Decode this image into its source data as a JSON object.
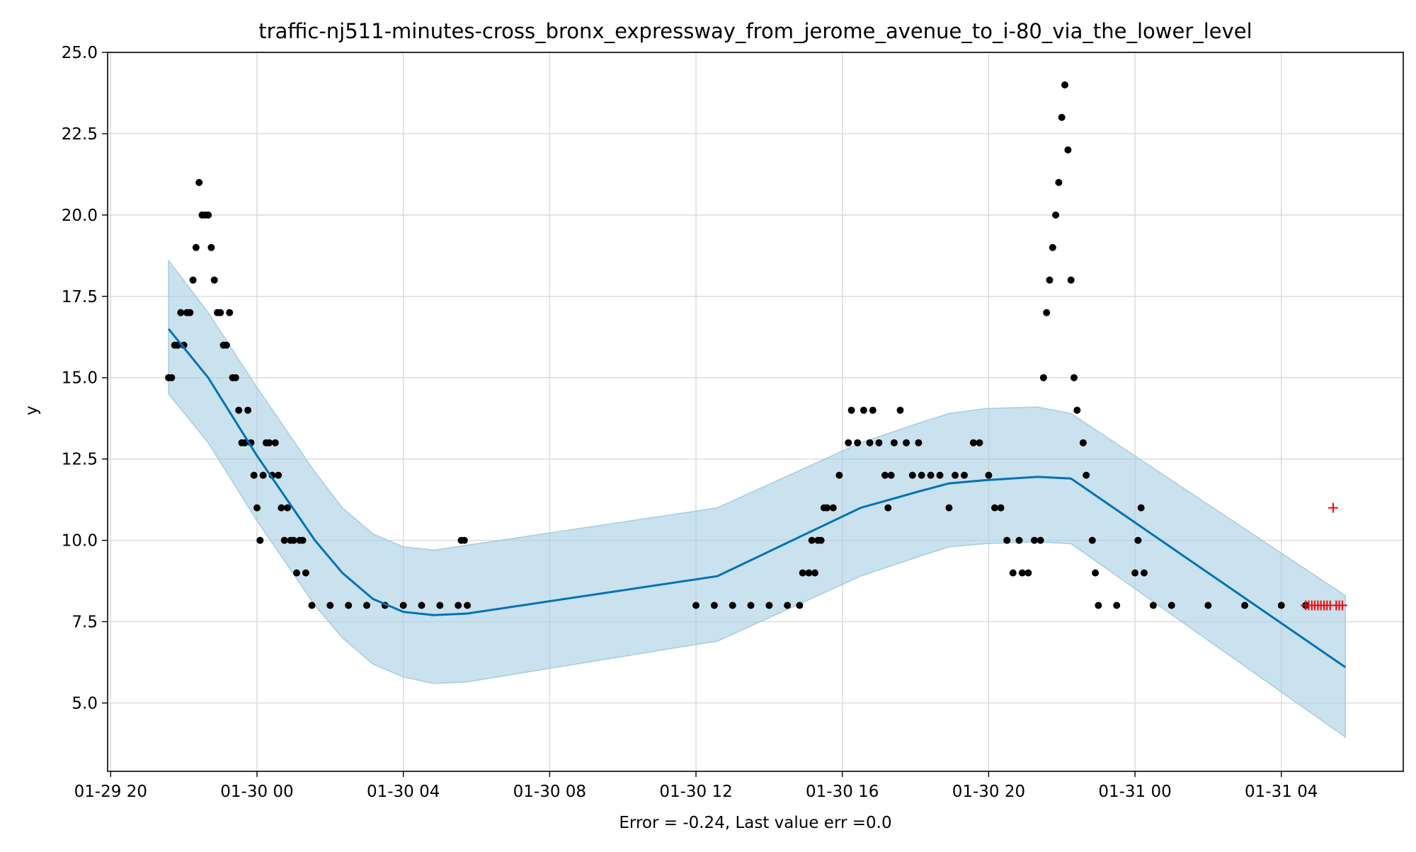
{
  "chart_data": {
    "type": "line",
    "title": "traffic-nj511-minutes-cross_bronx_expressway_from_jerome_avenue_to_i-80_via_the_lower_level",
    "xlabel": "Error = -0.24, Last value err =0.0",
    "ylabel": "y",
    "x_type": "datetime",
    "xlim": [
      "2020-01-29T19:55",
      "2020-01-31T07:20"
    ],
    "ylim": [
      2.9,
      25.0
    ],
    "grid": true,
    "x_ticks": [
      {
        "value": "2020-01-29T20:00",
        "label": "01-29 20"
      },
      {
        "value": "2020-01-30T00:00",
        "label": "01-30 00"
      },
      {
        "value": "2020-01-30T04:00",
        "label": "01-30 04"
      },
      {
        "value": "2020-01-30T08:00",
        "label": "01-30 08"
      },
      {
        "value": "2020-01-30T12:00",
        "label": "01-30 12"
      },
      {
        "value": "2020-01-30T16:00",
        "label": "01-30 16"
      },
      {
        "value": "2020-01-30T20:00",
        "label": "01-30 20"
      },
      {
        "value": "2020-01-31T00:00",
        "label": "01-31 00"
      },
      {
        "value": "2020-01-31T04:00",
        "label": "01-31 04"
      }
    ],
    "y_ticks": [
      {
        "value": 5.0,
        "label": "5.0"
      },
      {
        "value": 7.5,
        "label": "7.5"
      },
      {
        "value": 10.0,
        "label": "10.0"
      },
      {
        "value": 12.5,
        "label": "12.5"
      },
      {
        "value": 15.0,
        "label": "15.0"
      },
      {
        "value": 17.5,
        "label": "17.5"
      },
      {
        "value": 20.0,
        "label": "20.0"
      },
      {
        "value": 22.5,
        "label": "22.5"
      },
      {
        "value": 25.0,
        "label": "25.0"
      }
    ],
    "colors": {
      "forecast_line": "#0072b2",
      "uncertainty_band": "#a6cde3",
      "observed": "#000000",
      "test_points": "#ff0000",
      "grid": "#d9d9d9"
    },
    "forecast": {
      "x": [
        "2020-01-29T21:35",
        "2020-01-29T22:40",
        "2020-01-30T00:00",
        "2020-01-30T01:35",
        "2020-01-30T02:20",
        "2020-01-30T03:10",
        "2020-01-30T04:00",
        "2020-01-30T04:50",
        "2020-01-30T05:45",
        "2020-01-30T12:35",
        "2020-01-30T16:30",
        "2020-01-30T18:05",
        "2020-01-30T18:55",
        "2020-01-30T19:55",
        "2020-01-30T21:20",
        "2020-01-30T22:15",
        "2020-01-31T05:45"
      ],
      "y": [
        16.5,
        15.0,
        12.6,
        10.0,
        9.0,
        8.2,
        7.8,
        7.7,
        7.75,
        8.9,
        11.0,
        11.5,
        11.75,
        11.85,
        11.95,
        11.9,
        6.1
      ]
    },
    "uncertainty": {
      "x": [
        "2020-01-29T21:35",
        "2020-01-29T22:40",
        "2020-01-30T00:00",
        "2020-01-30T01:35",
        "2020-01-30T02:20",
        "2020-01-30T03:10",
        "2020-01-30T04:00",
        "2020-01-30T04:50",
        "2020-01-30T05:45",
        "2020-01-30T12:00",
        "2020-01-30T12:35",
        "2020-01-30T16:30",
        "2020-01-30T18:05",
        "2020-01-30T18:55",
        "2020-01-30T19:55",
        "2020-01-30T21:20",
        "2020-01-30T22:15",
        "2020-01-31T05:45"
      ],
      "upper": [
        18.6,
        17.0,
        14.7,
        12.1,
        11.0,
        10.2,
        9.8,
        9.7,
        9.85,
        10.9,
        11.0,
        13.0,
        13.6,
        13.9,
        14.05,
        14.1,
        13.9,
        8.3
      ],
      "lower": [
        14.5,
        13.0,
        10.6,
        8.0,
        7.0,
        6.2,
        5.8,
        5.6,
        5.65,
        6.8,
        6.9,
        8.9,
        9.5,
        9.8,
        9.9,
        9.95,
        9.9,
        3.95
      ]
    },
    "observed": [
      [
        "2020-01-29T21:35",
        15
      ],
      [
        "2020-01-29T21:40",
        15
      ],
      [
        "2020-01-29T21:45",
        16
      ],
      [
        "2020-01-29T21:50",
        16
      ],
      [
        "2020-01-29T21:55",
        17
      ],
      [
        "2020-01-29T22:00",
        16
      ],
      [
        "2020-01-29T22:05",
        17
      ],
      [
        "2020-01-29T22:10",
        17
      ],
      [
        "2020-01-29T22:15",
        18
      ],
      [
        "2020-01-29T22:20",
        19
      ],
      [
        "2020-01-29T22:25",
        21
      ],
      [
        "2020-01-29T22:30",
        20
      ],
      [
        "2020-01-29T22:35",
        20
      ],
      [
        "2020-01-29T22:40",
        20
      ],
      [
        "2020-01-29T22:45",
        19
      ],
      [
        "2020-01-29T22:50",
        18
      ],
      [
        "2020-01-29T22:55",
        17
      ],
      [
        "2020-01-29T23:00",
        17
      ],
      [
        "2020-01-29T23:05",
        16
      ],
      [
        "2020-01-29T23:10",
        16
      ],
      [
        "2020-01-29T23:15",
        17
      ],
      [
        "2020-01-29T23:20",
        15
      ],
      [
        "2020-01-29T23:25",
        15
      ],
      [
        "2020-01-29T23:30",
        14
      ],
      [
        "2020-01-29T23:35",
        13
      ],
      [
        "2020-01-29T23:40",
        13
      ],
      [
        "2020-01-29T23:45",
        14
      ],
      [
        "2020-01-29T23:50",
        13
      ],
      [
        "2020-01-29T23:55",
        12
      ],
      [
        "2020-01-30T00:00",
        11
      ],
      [
        "2020-01-30T00:05",
        10
      ],
      [
        "2020-01-30T00:10",
        12
      ],
      [
        "2020-01-30T00:15",
        13
      ],
      [
        "2020-01-30T00:20",
        13
      ],
      [
        "2020-01-30T00:25",
        12
      ],
      [
        "2020-01-30T00:30",
        13
      ],
      [
        "2020-01-30T00:35",
        12
      ],
      [
        "2020-01-30T00:40",
        11
      ],
      [
        "2020-01-30T00:45",
        10
      ],
      [
        "2020-01-30T00:50",
        11
      ],
      [
        "2020-01-30T00:55",
        10
      ],
      [
        "2020-01-30T01:00",
        10
      ],
      [
        "2020-01-30T01:05",
        9
      ],
      [
        "2020-01-30T01:10",
        10
      ],
      [
        "2020-01-30T01:15",
        10
      ],
      [
        "2020-01-30T01:20",
        9
      ],
      [
        "2020-01-30T01:30",
        8
      ],
      [
        "2020-01-30T02:00",
        8
      ],
      [
        "2020-01-30T02:30",
        8
      ],
      [
        "2020-01-30T03:00",
        8
      ],
      [
        "2020-01-30T03:30",
        8
      ],
      [
        "2020-01-30T04:00",
        8
      ],
      [
        "2020-01-30T04:30",
        8
      ],
      [
        "2020-01-30T05:00",
        8
      ],
      [
        "2020-01-30T05:30",
        8
      ],
      [
        "2020-01-30T05:35",
        10
      ],
      [
        "2020-01-30T05:40",
        10
      ],
      [
        "2020-01-30T05:45",
        8
      ],
      [
        "2020-01-30T12:00",
        8
      ],
      [
        "2020-01-30T12:30",
        8
      ],
      [
        "2020-01-30T13:00",
        8
      ],
      [
        "2020-01-30T13:30",
        8
      ],
      [
        "2020-01-30T14:00",
        8
      ],
      [
        "2020-01-30T14:30",
        8
      ],
      [
        "2020-01-30T14:50",
        8
      ],
      [
        "2020-01-30T14:55",
        9
      ],
      [
        "2020-01-30T15:05",
        9
      ],
      [
        "2020-01-30T15:10",
        10
      ],
      [
        "2020-01-30T15:15",
        9
      ],
      [
        "2020-01-30T15:20",
        10
      ],
      [
        "2020-01-30T15:25",
        10
      ],
      [
        "2020-01-30T15:30",
        11
      ],
      [
        "2020-01-30T15:35",
        11
      ],
      [
        "2020-01-30T15:45",
        11
      ],
      [
        "2020-01-30T15:55",
        12
      ],
      [
        "2020-01-30T16:10",
        13
      ],
      [
        "2020-01-30T16:15",
        14
      ],
      [
        "2020-01-30T16:25",
        13
      ],
      [
        "2020-01-30T16:35",
        14
      ],
      [
        "2020-01-30T16:45",
        13
      ],
      [
        "2020-01-30T16:50",
        14
      ],
      [
        "2020-01-30T17:00",
        13
      ],
      [
        "2020-01-30T17:10",
        12
      ],
      [
        "2020-01-30T17:15",
        11
      ],
      [
        "2020-01-30T17:20",
        12
      ],
      [
        "2020-01-30T17:25",
        13
      ],
      [
        "2020-01-30T17:35",
        14
      ],
      [
        "2020-01-30T17:45",
        13
      ],
      [
        "2020-01-30T17:55",
        12
      ],
      [
        "2020-01-30T18:05",
        13
      ],
      [
        "2020-01-30T18:10",
        12
      ],
      [
        "2020-01-30T18:25",
        12
      ],
      [
        "2020-01-30T18:40",
        12
      ],
      [
        "2020-01-30T18:55",
        11
      ],
      [
        "2020-01-30T19:05",
        12
      ],
      [
        "2020-01-30T19:20",
        12
      ],
      [
        "2020-01-30T19:35",
        13
      ],
      [
        "2020-01-30T19:45",
        13
      ],
      [
        "2020-01-30T20:00",
        12
      ],
      [
        "2020-01-30T20:10",
        11
      ],
      [
        "2020-01-30T20:20",
        11
      ],
      [
        "2020-01-30T20:30",
        10
      ],
      [
        "2020-01-30T20:40",
        9
      ],
      [
        "2020-01-30T20:50",
        10
      ],
      [
        "2020-01-30T20:55",
        9
      ],
      [
        "2020-01-30T21:05",
        9
      ],
      [
        "2020-01-30T21:15",
        10
      ],
      [
        "2020-01-30T21:25",
        10
      ],
      [
        "2020-01-30T21:30",
        15
      ],
      [
        "2020-01-30T21:35",
        17
      ],
      [
        "2020-01-30T21:40",
        18
      ],
      [
        "2020-01-30T21:45",
        19
      ],
      [
        "2020-01-30T21:50",
        20
      ],
      [
        "2020-01-30T21:55",
        21
      ],
      [
        "2020-01-30T22:00",
        23
      ],
      [
        "2020-01-30T22:05",
        24
      ],
      [
        "2020-01-30T22:10",
        22
      ],
      [
        "2020-01-30T22:15",
        18
      ],
      [
        "2020-01-30T22:20",
        15
      ],
      [
        "2020-01-30T22:25",
        14
      ],
      [
        "2020-01-30T22:35",
        13
      ],
      [
        "2020-01-30T22:40",
        12
      ],
      [
        "2020-01-30T22:50",
        10
      ],
      [
        "2020-01-30T22:55",
        9
      ],
      [
        "2020-01-30T23:00",
        8
      ],
      [
        "2020-01-30T23:30",
        8
      ],
      [
        "2020-01-31T00:00",
        9
      ],
      [
        "2020-01-31T00:05",
        10
      ],
      [
        "2020-01-31T00:10",
        11
      ],
      [
        "2020-01-31T00:15",
        9
      ],
      [
        "2020-01-31T00:30",
        8
      ],
      [
        "2020-01-31T01:00",
        8
      ],
      [
        "2020-01-31T02:00",
        8
      ],
      [
        "2020-01-31T03:00",
        8
      ],
      [
        "2020-01-31T04:00",
        8
      ],
      [
        "2020-01-31T04:40",
        8
      ]
    ],
    "test": [
      [
        "2020-01-31T04:40",
        8
      ],
      [
        "2020-01-31T04:45",
        8
      ],
      [
        "2020-01-31T04:50",
        8
      ],
      [
        "2020-01-31T04:55",
        8
      ],
      [
        "2020-01-31T05:00",
        8
      ],
      [
        "2020-01-31T05:05",
        8
      ],
      [
        "2020-01-31T05:10",
        8
      ],
      [
        "2020-01-31T05:15",
        8
      ],
      [
        "2020-01-31T05:20",
        8
      ],
      [
        "2020-01-31T05:25",
        11
      ],
      [
        "2020-01-31T05:30",
        8
      ],
      [
        "2020-01-31T05:35",
        8
      ],
      [
        "2020-01-31T05:40",
        8
      ]
    ]
  }
}
